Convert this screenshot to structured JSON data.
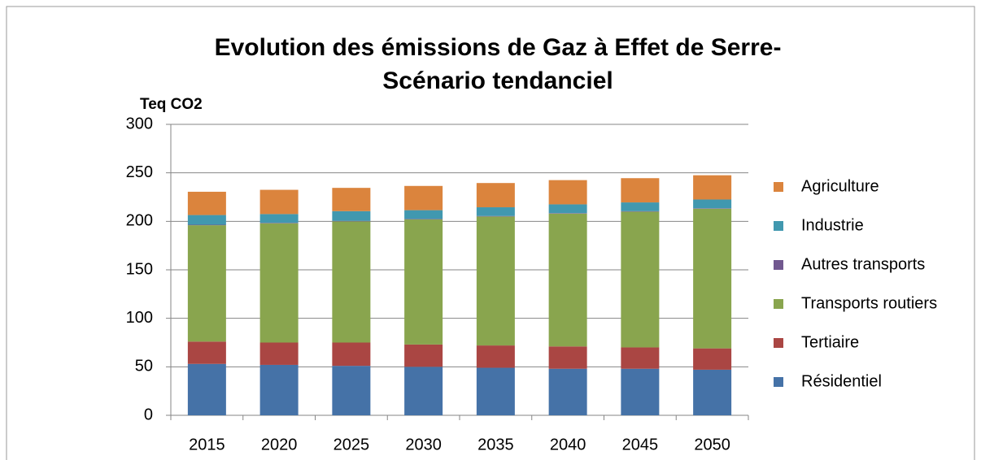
{
  "chart_data": {
    "type": "stacked_bar",
    "title_lines": [
      "Evolution des émissions de Gaz à Effet de Serre-",
      "Scénario tendanciel"
    ],
    "y_label": "Teq CO2",
    "categories": [
      "2015",
      "2020",
      "2025",
      "2030",
      "2035",
      "2040",
      "2045",
      "2050"
    ],
    "series": [
      {
        "name": "Résidentiel",
        "color": "#4572a7",
        "values": [
          53,
          52,
          51,
          50,
          49,
          48,
          48,
          47
        ]
      },
      {
        "name": "Tertiaire",
        "color": "#aa4643",
        "values": [
          23,
          23,
          24,
          23,
          23,
          23,
          22,
          22
        ]
      },
      {
        "name": "Transports routiers",
        "color": "#89a54e",
        "values": [
          120,
          123,
          125,
          129,
          133,
          137,
          140,
          144
        ]
      },
      {
        "name": "Autres transports",
        "color": "#71588f",
        "values": [
          0.5,
          0.5,
          0.5,
          0.5,
          0.5,
          0.5,
          0.5,
          0.5
        ]
      },
      {
        "name": "Industrie",
        "color": "#4198af",
        "values": [
          10,
          9,
          10,
          9,
          9,
          9,
          9,
          9
        ]
      },
      {
        "name": "Agriculture",
        "color": "#db843d",
        "values": [
          24,
          25,
          24,
          25,
          25,
          25,
          25,
          25
        ]
      }
    ],
    "ylim": [
      0,
      300
    ],
    "yticks": [
      0,
      50,
      100,
      150,
      200,
      250,
      300
    ],
    "grid": true,
    "legend": "right"
  }
}
